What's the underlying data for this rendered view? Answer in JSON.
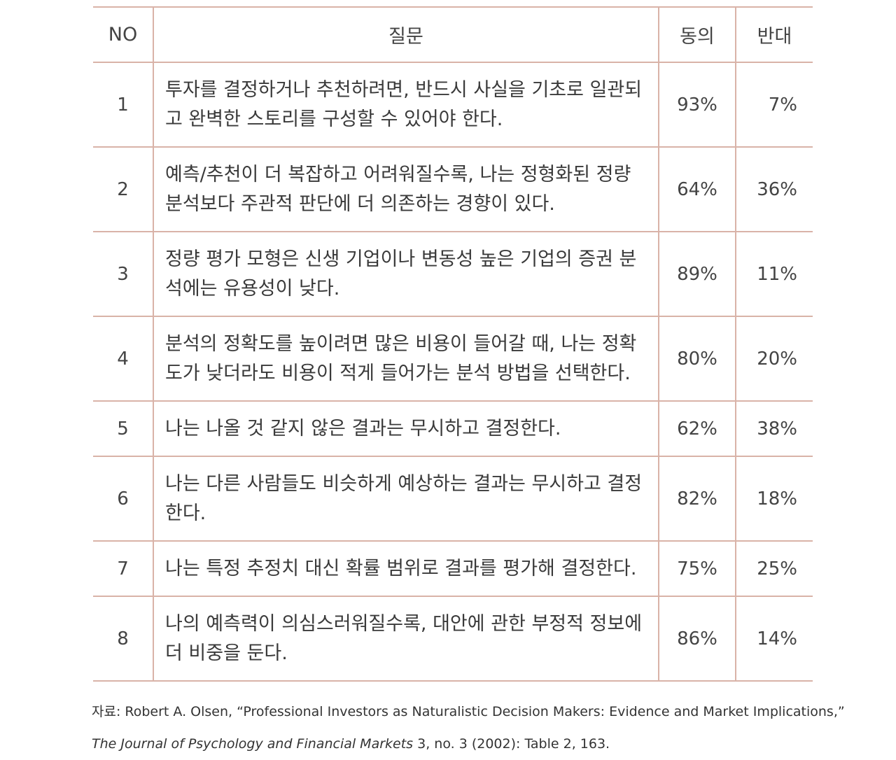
{
  "table": {
    "headers": {
      "no": "NO",
      "question": "질문",
      "agree": "동의",
      "disagree": "반대"
    },
    "rows": [
      {
        "no": "1",
        "question": "투자를 결정하거나 추천하려면, 반드시 사실을 기초로 일관되고 완벽한 스토리를 구성할 수 있어야 한다.",
        "agree": "93%",
        "disagree": "7%"
      },
      {
        "no": "2",
        "question": "예측/추천이 더 복잡하고 어려워질수록, 나는 정형화된 정량 분석보다 주관적 판단에 더 의존하는 경향이 있다.",
        "agree": "64%",
        "disagree": "36%"
      },
      {
        "no": "3",
        "question": "정량 평가 모형은 신생 기업이나 변동성 높은 기업의 증권 분석에는 유용성이 낮다.",
        "agree": "89%",
        "disagree": "11%"
      },
      {
        "no": "4",
        "question": "분석의 정확도를 높이려면 많은 비용이 들어갈 때, 나는 정확도가 낮더라도 비용이 적게 들어가는 분석 방법을 선택한다.",
        "agree": "80%",
        "disagree": "20%"
      },
      {
        "no": "5",
        "question": "나는 나올 것 같지 않은 결과는 무시하고 결정한다.",
        "agree": "62%",
        "disagree": "38%"
      },
      {
        "no": "6",
        "question": "나는 다른 사람들도 비슷하게 예상하는 결과는 무시하고 결정한다.",
        "agree": "82%",
        "disagree": "18%"
      },
      {
        "no": "7",
        "question": "나는 특정 추정치 대신 확률 범위로 결과를 평가해 결정한다.",
        "agree": "75%",
        "disagree": "25%"
      },
      {
        "no": "8",
        "question": "나의 예측력이 의심스러워질수록, 대안에 관한 부정적 정보에 더 비중을 둔다.",
        "agree": "86%",
        "disagree": "14%"
      }
    ]
  },
  "source": {
    "line1": "자료: Robert A. Olsen, “Professional Investors as Naturalistic Decision Makers: Evidence and Market Implications,”",
    "journal": "The Journal of Psychology and Financial Markets",
    "line2_rest": " 3, no. 3 (2002): Table 2, 163."
  }
}
